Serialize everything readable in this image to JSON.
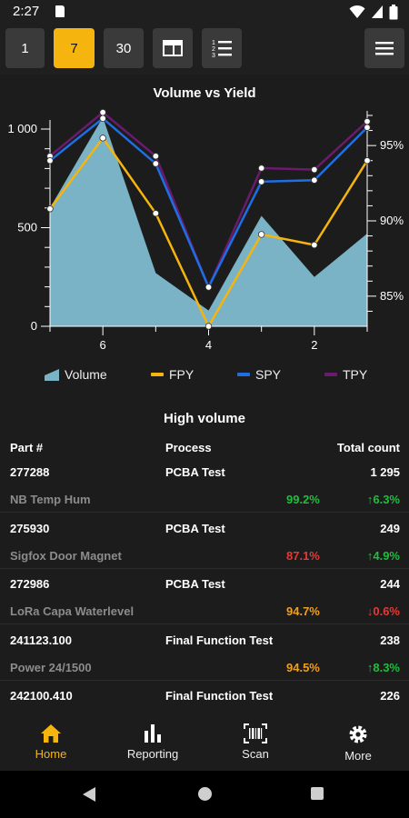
{
  "status": {
    "time": "2:27"
  },
  "toolbar": {
    "periods": [
      "1",
      "7",
      "30"
    ],
    "active_period": "7"
  },
  "colors": {
    "accent": "#f6b40e",
    "volume": "#7ab3c5",
    "fpy": "#f6b40e",
    "spy": "#1e6fe3",
    "tpy": "#6a1b6e",
    "good": "#1ebe3c",
    "warn": "#f0a020",
    "bad": "#e53935"
  },
  "chart_data": {
    "type": "area",
    "title": "Volume vs Yield",
    "x_ticks": [
      "6",
      "4",
      "2"
    ],
    "y_left_ticks": [
      "0",
      "500",
      "1 000"
    ],
    "y_right_ticks": [
      "85%",
      "90%",
      "95%"
    ],
    "y_left_range": [
      0,
      1000
    ],
    "y_right_range": [
      83,
      97
    ],
    "series": [
      {
        "name": "Volume",
        "type": "area",
        "axis": "left",
        "values": [
          600,
          1060,
          270,
          80,
          560,
          250,
          470
        ]
      },
      {
        "name": "FPY",
        "type": "line",
        "axis": "right",
        "values": [
          90.8,
          95.5,
          90.5,
          83.0,
          89.1,
          88.4,
          94.0
        ]
      },
      {
        "name": "SPY",
        "type": "line",
        "axis": "right",
        "values": [
          94.0,
          96.8,
          93.8,
          85.6,
          92.6,
          92.7,
          96.2
        ]
      },
      {
        "name": "TPY",
        "type": "line",
        "axis": "right",
        "values": [
          94.3,
          97.2,
          94.3,
          85.6,
          93.5,
          93.4,
          96.6
        ]
      }
    ]
  },
  "table": {
    "title": "High volume",
    "headers": {
      "part": "Part #",
      "process": "Process",
      "count": "Total count"
    },
    "rows": [
      {
        "part": "277288",
        "process": "PCBA Test",
        "count": "1 295",
        "name": "NB Temp Hum",
        "yield": "99.2%",
        "yield_status": "good",
        "delta": "↑6.3%",
        "delta_status": "good"
      },
      {
        "part": "275930",
        "process": "PCBA Test",
        "count": "249",
        "name": "Sigfox Door Magnet",
        "yield": "87.1%",
        "yield_status": "bad",
        "delta": "↑4.9%",
        "delta_status": "good"
      },
      {
        "part": "272986",
        "process": "PCBA Test",
        "count": "244",
        "name": "LoRa Capa Waterlevel",
        "yield": "94.7%",
        "yield_status": "warn",
        "delta": "↓0.6%",
        "delta_status": "bad"
      },
      {
        "part": "241123.100",
        "process": "Final Function Test",
        "count": "238",
        "name": "Power 24/1500",
        "yield": "94.5%",
        "yield_status": "warn",
        "delta": "↑8.3%",
        "delta_status": "good"
      },
      {
        "part": "242100.410",
        "process": "Final Function Test",
        "count": "226",
        "name": "",
        "yield": "",
        "yield_status": "",
        "delta": "",
        "delta_status": ""
      }
    ]
  },
  "nav": {
    "items": [
      {
        "label": "Home",
        "icon": "home-icon"
      },
      {
        "label": "Reporting",
        "icon": "bar-chart-icon"
      },
      {
        "label": "Scan",
        "icon": "barcode-scan-icon"
      },
      {
        "label": "More",
        "icon": "gear-icon"
      }
    ],
    "active": "Home"
  }
}
